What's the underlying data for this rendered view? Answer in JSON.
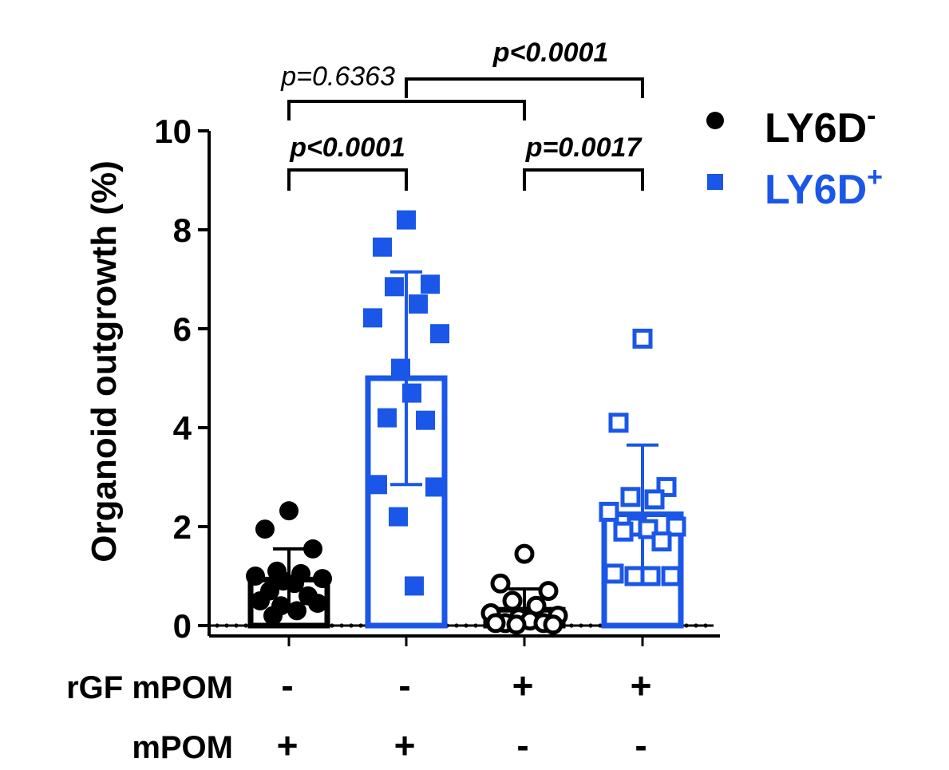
{
  "chart_data": {
    "type": "bar",
    "ylabel": "Organoid outgrowth (%)",
    "ylim": [
      0,
      10
    ],
    "yticks": [
      "0",
      "2",
      "4",
      "6",
      "8",
      "10"
    ],
    "groups": [
      {
        "id": "g1",
        "series": "LY6D-",
        "color": "#000000",
        "mean": 0.93,
        "sd": 0.62,
        "marker": "circle-filled",
        "points": [
          2.32,
          1.95,
          1.55,
          1.1,
          1.05,
          1.0,
          0.95,
          0.9,
          0.85,
          0.7,
          0.6,
          0.5,
          0.45,
          0.4,
          0.3,
          0.2
        ]
      },
      {
        "id": "g2",
        "series": "LY6D+",
        "color": "#1a56e8",
        "mean": 5.0,
        "sd": 2.15,
        "marker": "square-filled",
        "points": [
          8.2,
          7.65,
          6.9,
          6.85,
          6.5,
          6.22,
          5.9,
          5.2,
          4.7,
          4.2,
          4.15,
          2.85,
          2.8,
          2.2,
          0.8
        ]
      },
      {
        "id": "g3",
        "series": "LY6D-",
        "color": "#000000",
        "mean": 0.32,
        "sd": 0.42,
        "marker": "circle-open",
        "points": [
          1.45,
          0.85,
          0.7,
          0.5,
          0.4,
          0.25,
          0.2,
          0.15,
          0.1,
          0.05,
          0.05,
          0.05,
          0.02,
          0.02
        ]
      },
      {
        "id": "g4",
        "series": "LY6D+",
        "color": "#1a56e8",
        "mean": 2.25,
        "sd": 1.4,
        "marker": "square-open",
        "points": [
          5.8,
          4.1,
          2.8,
          2.6,
          2.55,
          2.3,
          2.0,
          2.0,
          1.95,
          1.9,
          1.7,
          1.05,
          1.0,
          1.0,
          1.0
        ]
      }
    ],
    "comparisons": [
      {
        "from": 0,
        "to": 1,
        "label": "p<0.0001",
        "style": "bold-italic"
      },
      {
        "from": 2,
        "to": 3,
        "label": "p=0.0017",
        "style": "bold-italic"
      },
      {
        "from": 0,
        "to": 2,
        "label": "p=0.6363",
        "style": "italic"
      },
      {
        "from": 1,
        "to": 3,
        "label": "p<0.0001",
        "style": "bold-italic"
      }
    ],
    "legend": {
      "position": "top-right",
      "items": [
        {
          "name": "LY6D",
          "sup": "-",
          "color": "#000000",
          "marker": "circle"
        },
        {
          "name": "LY6D",
          "sup": "+",
          "color": "#1a56e8",
          "marker": "square"
        }
      ]
    },
    "conditions": [
      {
        "label": "rGF mPOM",
        "values": [
          "-",
          "-",
          "+",
          "+"
        ]
      },
      {
        "label": "mPOM",
        "values": [
          "+",
          "+",
          "-",
          "-"
        ]
      }
    ]
  }
}
